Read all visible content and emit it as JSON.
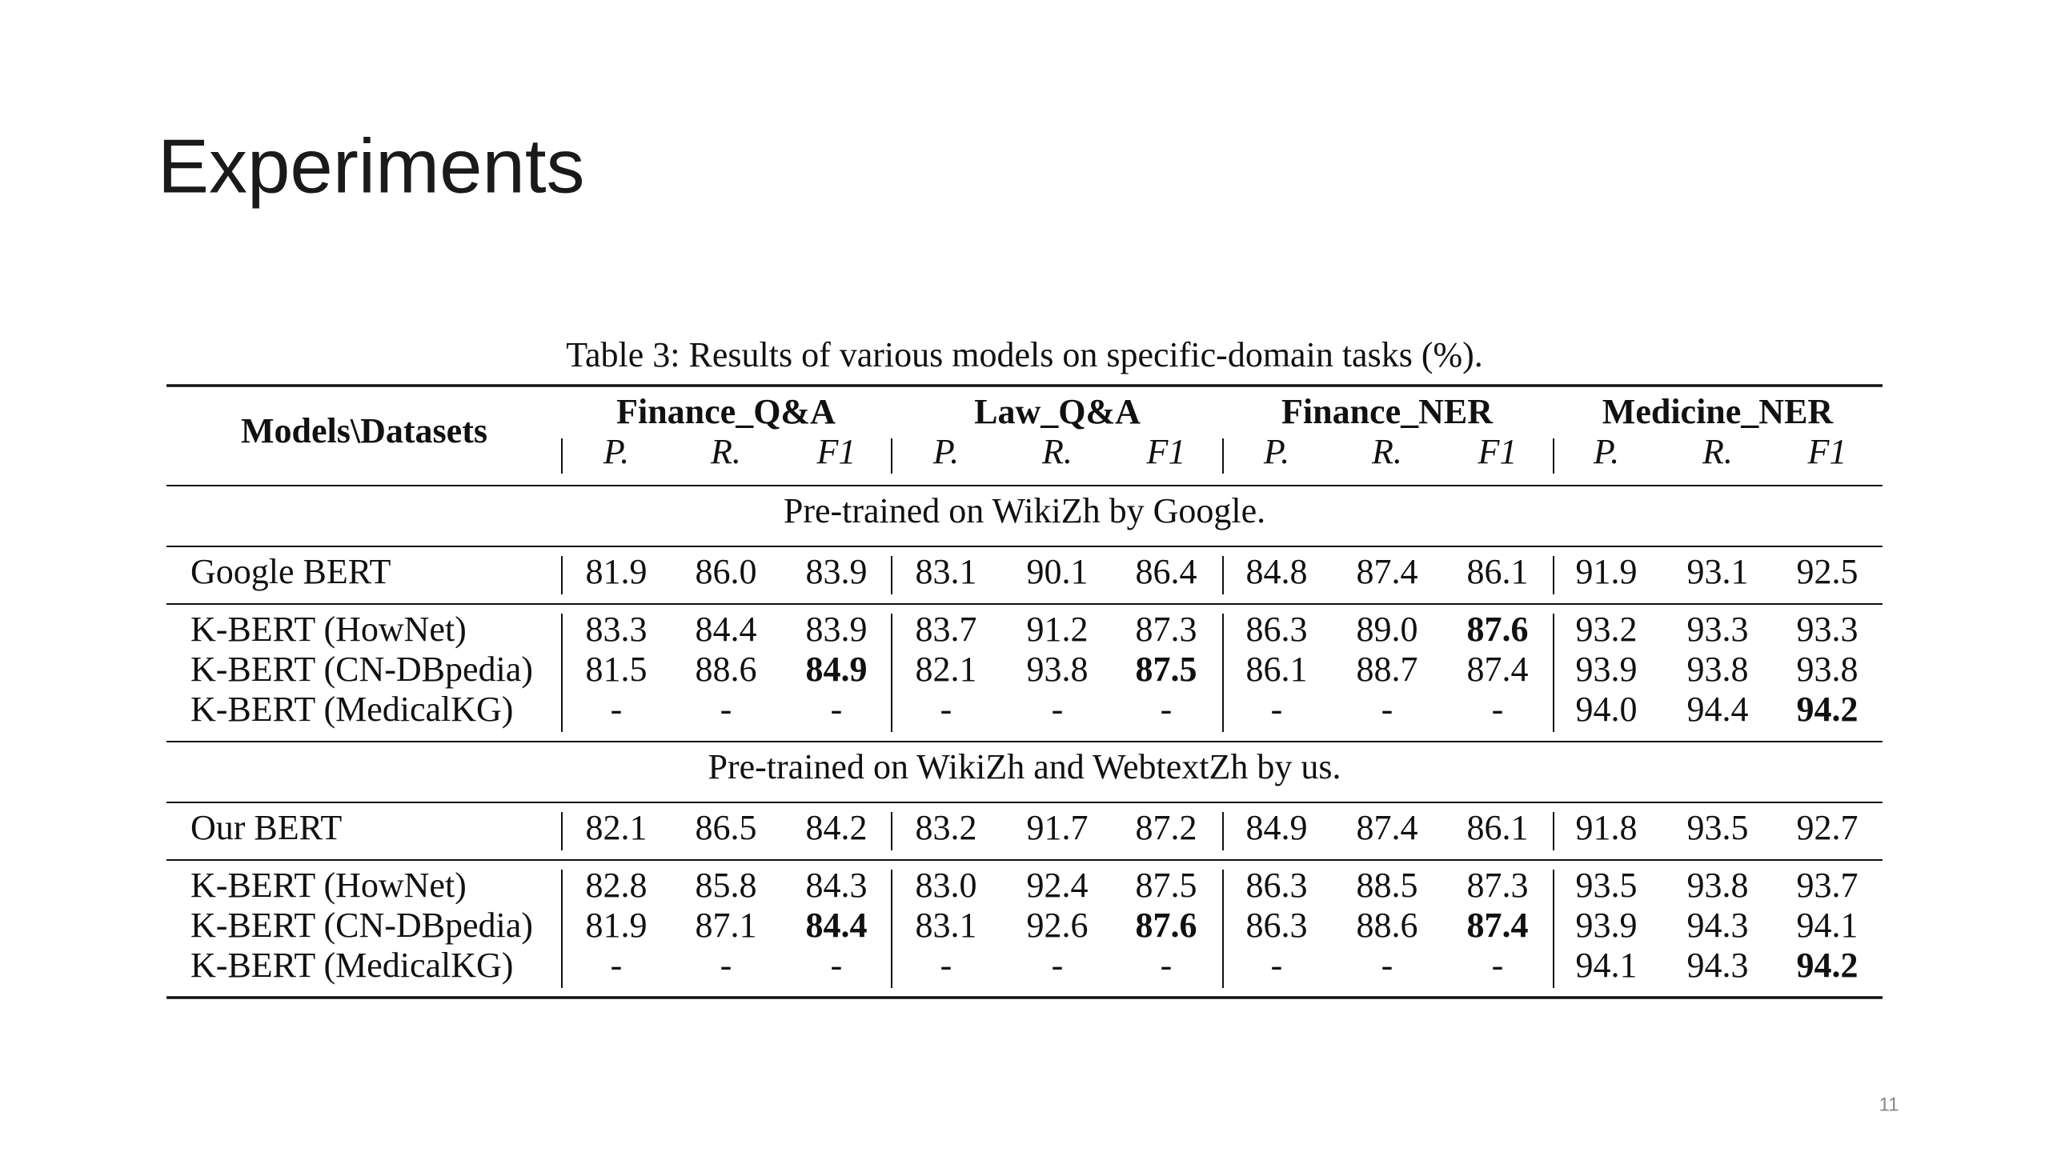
{
  "slide": {
    "title": "Experiments",
    "page_number": "11"
  },
  "table": {
    "caption": "Table 3: Results of various models on specific-domain tasks (%).",
    "corner_header": "Models\\Datasets",
    "groups": [
      "Finance_Q&A",
      "Law_Q&A",
      "Finance_NER",
      "Medicine_NER"
    ],
    "metrics": [
      "P.",
      "R.",
      "F1"
    ],
    "sections": [
      {
        "label": "Pre-trained on WikiZh by Google.",
        "blocks": [
          [
            {
              "model": "Google BERT",
              "cells": [
                "81.9",
                "86.0",
                "83.9",
                "83.1",
                "90.1",
                "86.4",
                "84.8",
                "87.4",
                "86.1",
                "91.9",
                "93.1",
                "92.5"
              ]
            }
          ],
          [
            {
              "model": "K-BERT (HowNet)",
              "cells": [
                "83.3",
                "84.4",
                "83.9",
                "83.7",
                "91.2",
                "87.3",
                "86.3",
                "89.0",
                {
                  "text": "87.6",
                  "bold": true
                },
                "93.2",
                "93.3",
                "93.3"
              ]
            },
            {
              "model": "K-BERT (CN-DBpedia)",
              "cells": [
                "81.5",
                "88.6",
                {
                  "text": "84.9",
                  "bold": true
                },
                "82.1",
                "93.8",
                {
                  "text": "87.5",
                  "bold": true
                },
                "86.1",
                "88.7",
                "87.4",
                "93.9",
                "93.8",
                "93.8"
              ]
            },
            {
              "model": "K-BERT (MedicalKG)",
              "cells": [
                "-",
                "-",
                "-",
                "-",
                "-",
                "-",
                "-",
                "-",
                "-",
                "94.0",
                "94.4",
                {
                  "text": "94.2",
                  "bold": true
                }
              ]
            }
          ]
        ]
      },
      {
        "label": "Pre-trained on WikiZh and WebtextZh by us.",
        "blocks": [
          [
            {
              "model": "Our BERT",
              "cells": [
                "82.1",
                "86.5",
                "84.2",
                "83.2",
                "91.7",
                "87.2",
                "84.9",
                "87.4",
                "86.1",
                "91.8",
                "93.5",
                "92.7"
              ]
            }
          ],
          [
            {
              "model": "K-BERT (HowNet)",
              "cells": [
                "82.8",
                "85.8",
                "84.3",
                "83.0",
                "92.4",
                "87.5",
                "86.3",
                "88.5",
                "87.3",
                "93.5",
                "93.8",
                "93.7"
              ]
            },
            {
              "model": "K-BERT (CN-DBpedia)",
              "cells": [
                "81.9",
                "87.1",
                {
                  "text": "84.4",
                  "bold": true
                },
                "83.1",
                "92.6",
                {
                  "text": "87.6",
                  "bold": true
                },
                "86.3",
                "88.6",
                {
                  "text": "87.4",
                  "bold": true
                },
                "93.9",
                "94.3",
                "94.1"
              ]
            },
            {
              "model": "K-BERT (MedicalKG)",
              "cells": [
                "-",
                "-",
                "-",
                "-",
                "-",
                "-",
                "-",
                "-",
                "-",
                "94.1",
                "94.3",
                {
                  "text": "94.2",
                  "bold": true
                }
              ]
            }
          ]
        ]
      }
    ]
  }
}
